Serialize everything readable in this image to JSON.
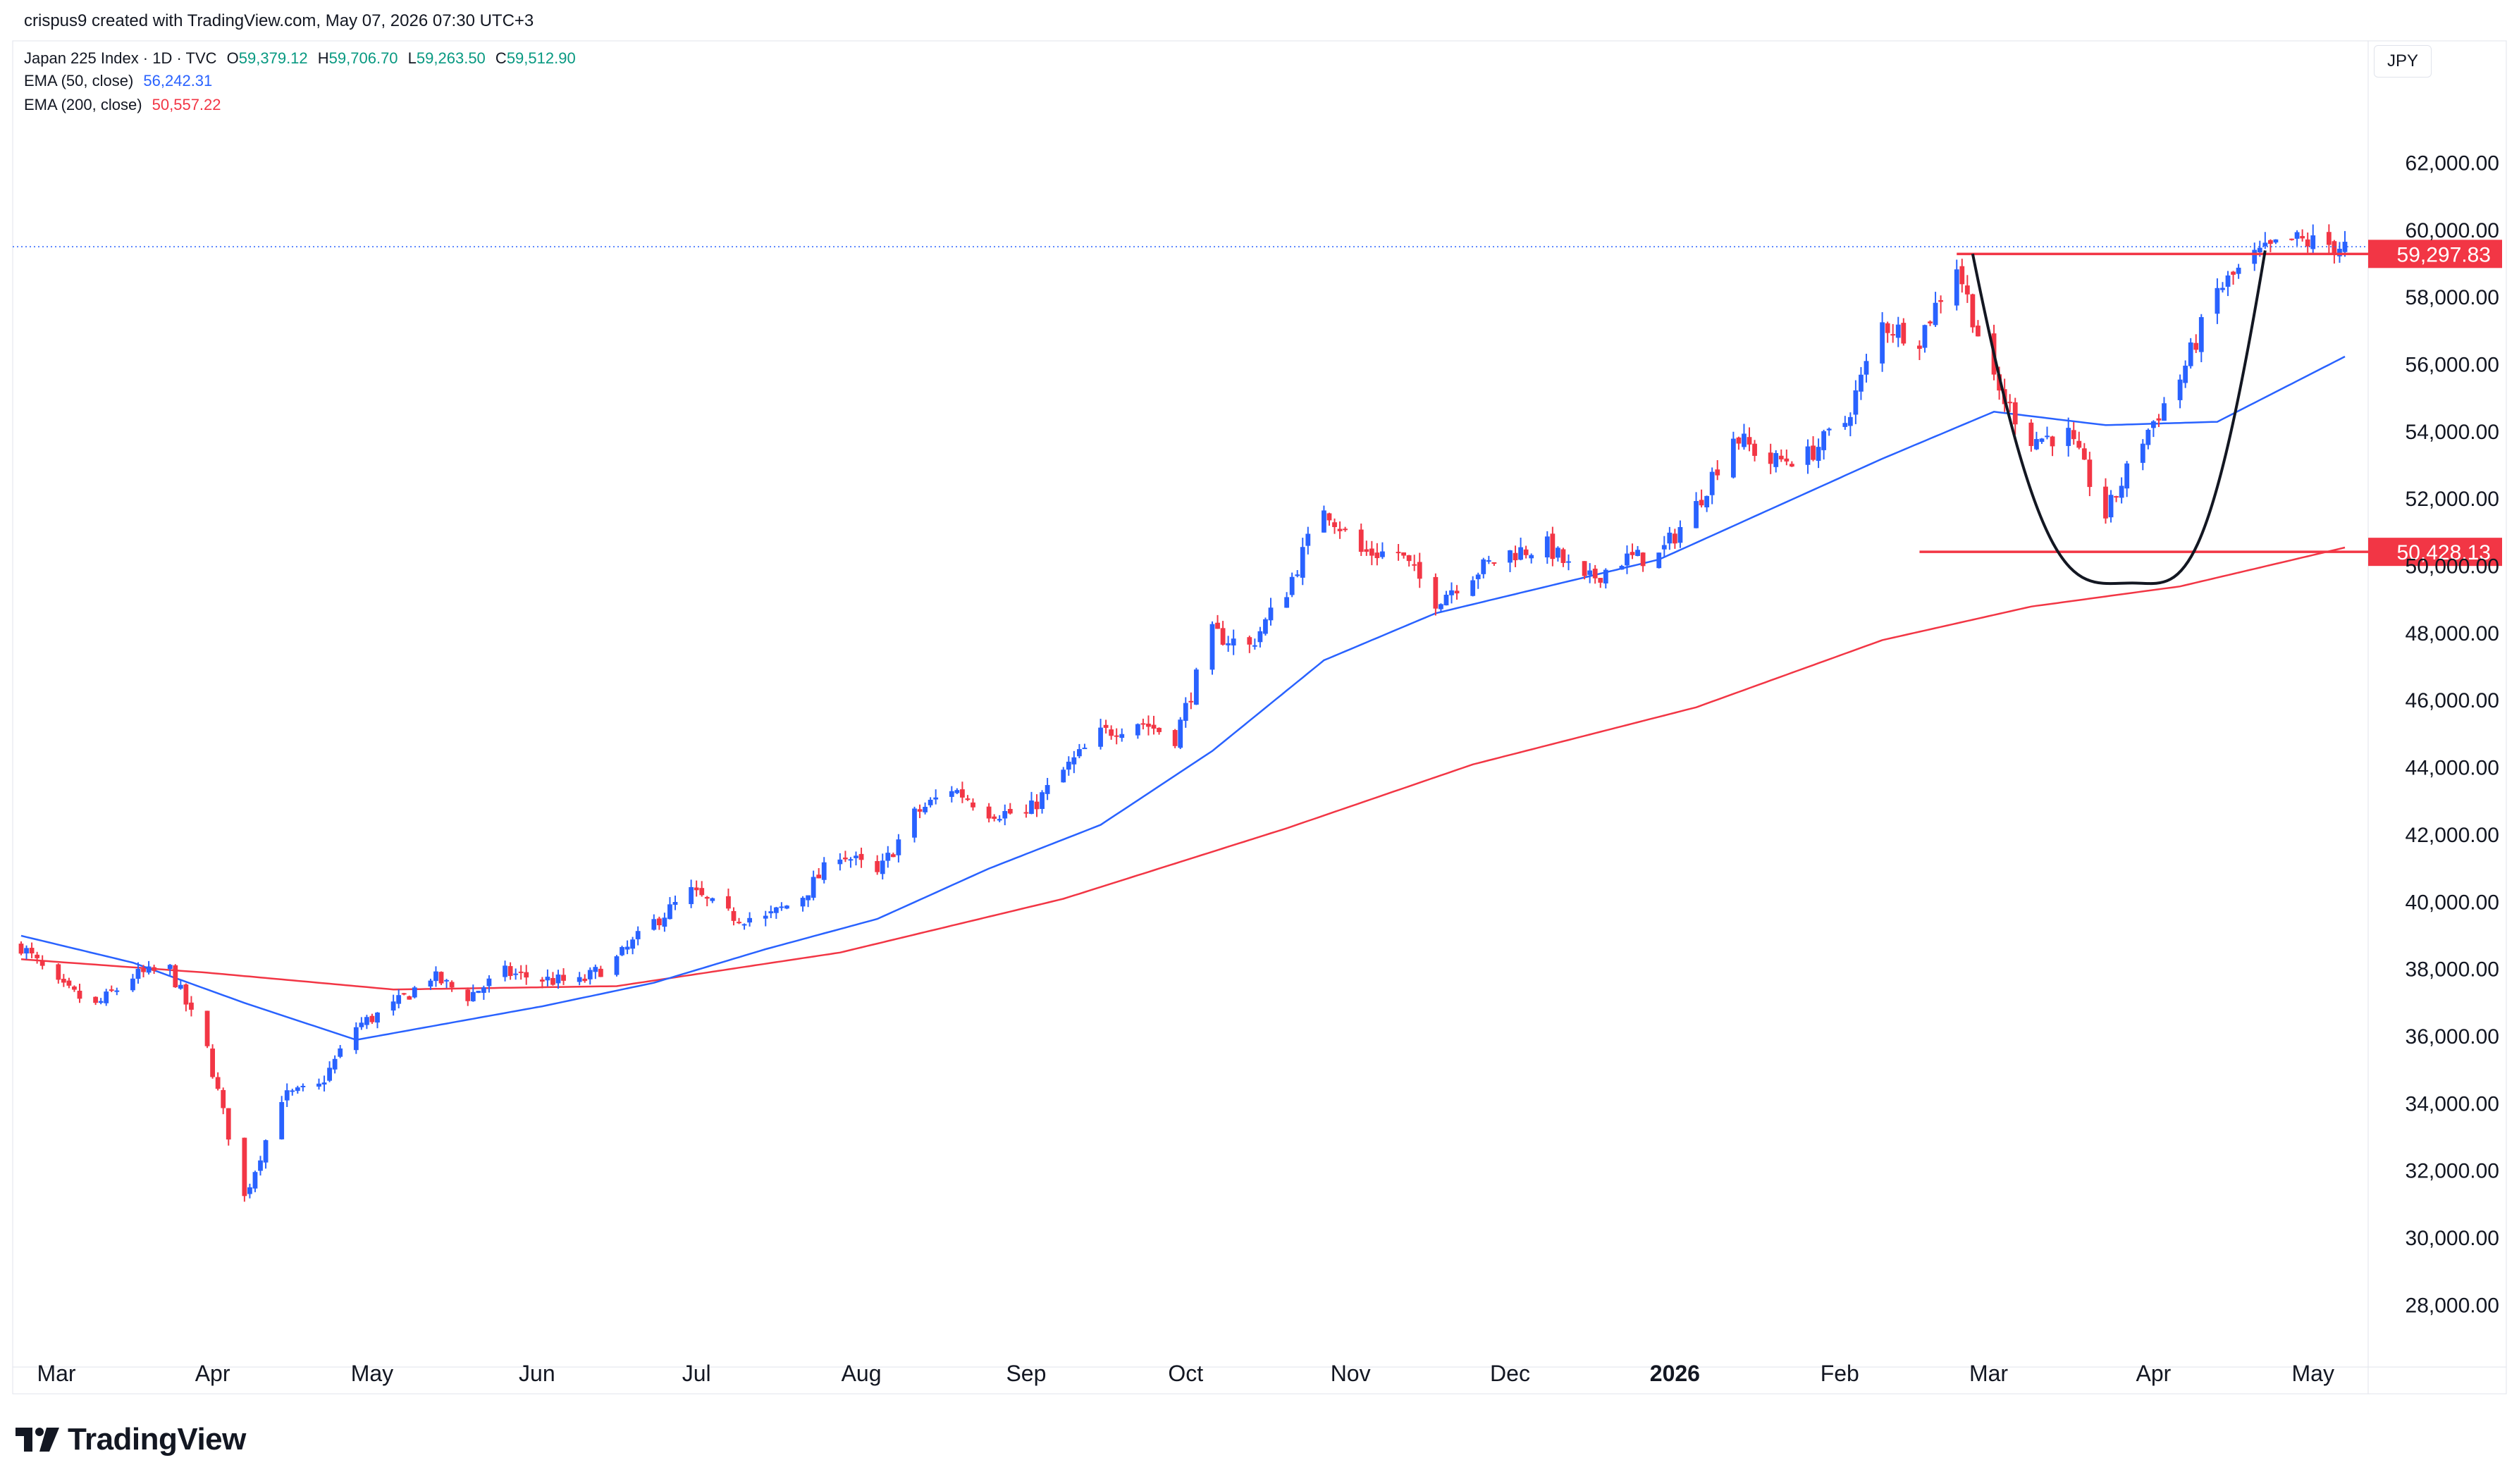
{
  "header": {
    "credit": "crispus9 created with TradingView.com, May 07, 2026 07:30 UTC+3",
    "symbol": "Japan 225 Index · 1D · TVC",
    "o_label": "O",
    "o_value": "59,379.12",
    "h_label": "H",
    "h_value": "59,706.70",
    "l_label": "L",
    "l_value": "59,263.50",
    "c_label": "C",
    "c_value": "59,512.90",
    "ema50_label": "EMA (50, close)",
    "ema50_value": "56,242.31",
    "ema200_label": "EMA (200, close)",
    "ema200_value": "50,557.22"
  },
  "currency": "JPY",
  "brand": {
    "name": "TradingView",
    "icon": "tradingview-logo-icon"
  },
  "colors": {
    "up": "#2962ff",
    "down": "#f23645",
    "ema50": "#2962ff",
    "ema200": "#f23645",
    "pattern": "#131722",
    "level": "#f23645"
  },
  "chart_data": {
    "type": "candlestick",
    "title": "Japan 225 Index · 1D · TVC",
    "ylim": [
      27000,
      63500
    ],
    "y_ticks": [
      28000,
      30000,
      32000,
      34000,
      36000,
      38000,
      40000,
      42000,
      44000,
      46000,
      48000,
      50000,
      52000,
      54000,
      56000,
      58000,
      60000,
      62000
    ],
    "y_tick_labels": [
      "28,000.00",
      "30,000.00",
      "32,000.00",
      "34,000.00",
      "36,000.00",
      "38,000.00",
      "40,000.00",
      "42,000.00",
      "44,000.00",
      "46,000.00",
      "48,000.00",
      "50,000.00",
      "52,000.00",
      "54,000.00",
      "56,000.00",
      "58,000.00",
      "60,000.00",
      "62,000.00"
    ],
    "x_labels": [
      "Mar",
      "Apr",
      "May",
      "Jun",
      "Jul",
      "Aug",
      "Sep",
      "Oct",
      "Nov",
      "Dec",
      "2026",
      "Feb",
      "Mar",
      "Apr",
      "May"
    ],
    "x_label_dates": [
      "2025-03-01",
      "2025-04-01",
      "2025-05-01",
      "2025-06-01",
      "2025-07-01",
      "2025-08-01",
      "2025-09-01",
      "2025-10-01",
      "2025-11-01",
      "2025-12-01",
      "2026-01-01",
      "2026-02-01",
      "2026-03-01",
      "2026-04-01",
      "2026-05-01"
    ],
    "x_range": [
      "2025-02-24",
      "2026-05-07"
    ],
    "close_path": [
      [
        "2025-02-24",
        38700
      ],
      [
        "2025-03-03",
        37500
      ],
      [
        "2025-03-10",
        36900
      ],
      [
        "2025-03-17",
        37800
      ],
      [
        "2025-03-24",
        38000
      ],
      [
        "2025-03-31",
        35600
      ],
      [
        "2025-04-07",
        31200
      ],
      [
        "2025-04-14",
        34200
      ],
      [
        "2025-04-21",
        34500
      ],
      [
        "2025-04-28",
        36300
      ],
      [
        "2025-05-05",
        36900
      ],
      [
        "2025-05-12",
        37800
      ],
      [
        "2025-05-19",
        37200
      ],
      [
        "2025-05-26",
        37900
      ],
      [
        "2025-06-02",
        37700
      ],
      [
        "2025-06-09",
        37600
      ],
      [
        "2025-06-16",
        38300
      ],
      [
        "2025-06-23",
        39400
      ],
      [
        "2025-06-30",
        40300
      ],
      [
        "2025-07-07",
        39600
      ],
      [
        "2025-07-14",
        39500
      ],
      [
        "2025-07-21",
        40200
      ],
      [
        "2025-07-28",
        41500
      ],
      [
        "2025-08-04",
        40800
      ],
      [
        "2025-08-11",
        42600
      ],
      [
        "2025-08-18",
        43400
      ],
      [
        "2025-08-25",
        42700
      ],
      [
        "2025-09-01",
        42600
      ],
      [
        "2025-09-08",
        43900
      ],
      [
        "2025-09-15",
        45000
      ],
      [
        "2025-09-22",
        45400
      ],
      [
        "2025-09-29",
        44900
      ],
      [
        "2025-10-06",
        48000
      ],
      [
        "2025-10-13",
        47600
      ],
      [
        "2025-10-20",
        49300
      ],
      [
        "2025-10-27",
        51800
      ],
      [
        "2025-11-03",
        50400
      ],
      [
        "2025-11-10",
        50400
      ],
      [
        "2025-11-17",
        49000
      ],
      [
        "2025-11-24",
        49800
      ],
      [
        "2025-12-01",
        50400
      ],
      [
        "2025-12-08",
        50600
      ],
      [
        "2025-12-15",
        49500
      ],
      [
        "2025-12-22",
        50200
      ],
      [
        "2025-12-29",
        50300
      ],
      [
        "2026-01-05",
        51800
      ],
      [
        "2026-01-12",
        53900
      ],
      [
        "2026-01-19",
        53100
      ],
      [
        "2026-01-26",
        53300
      ],
      [
        "2026-02-02",
        54300
      ],
      [
        "2026-02-09",
        57200
      ],
      [
        "2026-02-16",
        56800
      ],
      [
        "2026-02-23",
        59000
      ],
      [
        "2026-03-02",
        55400
      ],
      [
        "2026-03-09",
        53800
      ],
      [
        "2026-03-16",
        53900
      ],
      [
        "2026-03-23",
        51500
      ],
      [
        "2026-03-30",
        53800
      ],
      [
        "2026-04-06",
        55600
      ],
      [
        "2026-04-13",
        58200
      ],
      [
        "2026-04-20",
        59200
      ],
      [
        "2026-04-27",
        59700
      ],
      [
        "2026-05-07",
        59513
      ]
    ],
    "ema50": [
      [
        "2025-02-24",
        39000
      ],
      [
        "2025-03-17",
        38200
      ],
      [
        "2025-04-07",
        37000
      ],
      [
        "2025-04-28",
        35900
      ],
      [
        "2025-05-12",
        36300
      ],
      [
        "2025-06-02",
        36900
      ],
      [
        "2025-06-23",
        37600
      ],
      [
        "2025-07-14",
        38600
      ],
      [
        "2025-08-04",
        39500
      ],
      [
        "2025-08-25",
        41000
      ],
      [
        "2025-09-15",
        42300
      ],
      [
        "2025-10-06",
        44500
      ],
      [
        "2025-10-27",
        47200
      ],
      [
        "2025-11-17",
        48600
      ],
      [
        "2025-12-08",
        49400
      ],
      [
        "2025-12-29",
        50200
      ],
      [
        "2026-01-19",
        51700
      ],
      [
        "2026-02-09",
        53200
      ],
      [
        "2026-03-02",
        54600
      ],
      [
        "2026-03-23",
        54200
      ],
      [
        "2026-04-13",
        54300
      ],
      [
        "2026-05-07",
        56242
      ]
    ],
    "ema200": [
      [
        "2025-02-24",
        38300
      ],
      [
        "2025-03-31",
        37900
      ],
      [
        "2025-05-05",
        37400
      ],
      [
        "2025-06-16",
        37500
      ],
      [
        "2025-07-28",
        38500
      ],
      [
        "2025-09-08",
        40100
      ],
      [
        "2025-10-20",
        42200
      ],
      [
        "2025-11-24",
        44100
      ],
      [
        "2026-01-05",
        45800
      ],
      [
        "2026-02-09",
        47800
      ],
      [
        "2026-03-09",
        48800
      ],
      [
        "2026-04-06",
        49400
      ],
      [
        "2026-05-07",
        50557
      ]
    ],
    "levels": [
      {
        "label": "59,297.83",
        "value": 59297.83,
        "from": "2026-02-23",
        "to": "2026-05-07"
      },
      {
        "label": "50,428.13",
        "value": 50428.13,
        "from": "2026-02-16",
        "to": "2026-05-07"
      }
    ],
    "cup_pattern": {
      "left": [
        "2026-02-26",
        59300
      ],
      "bottom": [
        "2026-03-28",
        49500
      ],
      "right": [
        "2026-04-22",
        59400
      ]
    },
    "last_price_line": 59513,
    "grid": false,
    "legend_position": "top-left"
  }
}
